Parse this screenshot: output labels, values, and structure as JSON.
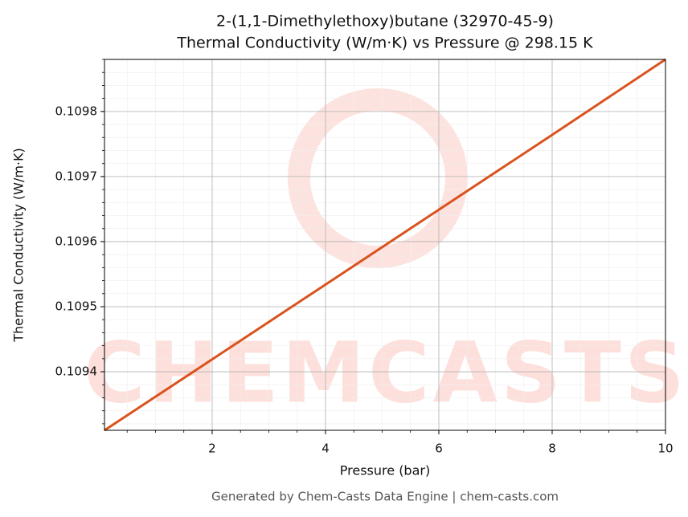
{
  "chart_data": {
    "type": "line",
    "title": "2-(1,1-Dimethylethoxy)butane (32970-45-9)",
    "subtitle": "Thermal Conductivity (W/m·K) vs Pressure @ 298.15 K",
    "x_label": "Pressure (bar)",
    "y_label": "Thermal Conductivity (W/m·K)",
    "footer": "Generated by Chem-Casts Data Engine | chem-casts.com",
    "watermark": "CHEMCASTS",
    "x": [
      0.1,
      2,
      4,
      6,
      8,
      10
    ],
    "values": [
      0.10931,
      0.109419,
      0.109534,
      0.109649,
      0.109764,
      0.10988
    ],
    "color": "#d9531e",
    "xlim": [
      0.1,
      10
    ],
    "xticks": [
      2,
      4,
      6,
      8,
      10
    ],
    "ylim": [
      0.10931,
      0.10988
    ],
    "yticks": [
      0.1094,
      0.1095,
      0.1096,
      0.1097,
      0.1098
    ],
    "grid": true
  }
}
